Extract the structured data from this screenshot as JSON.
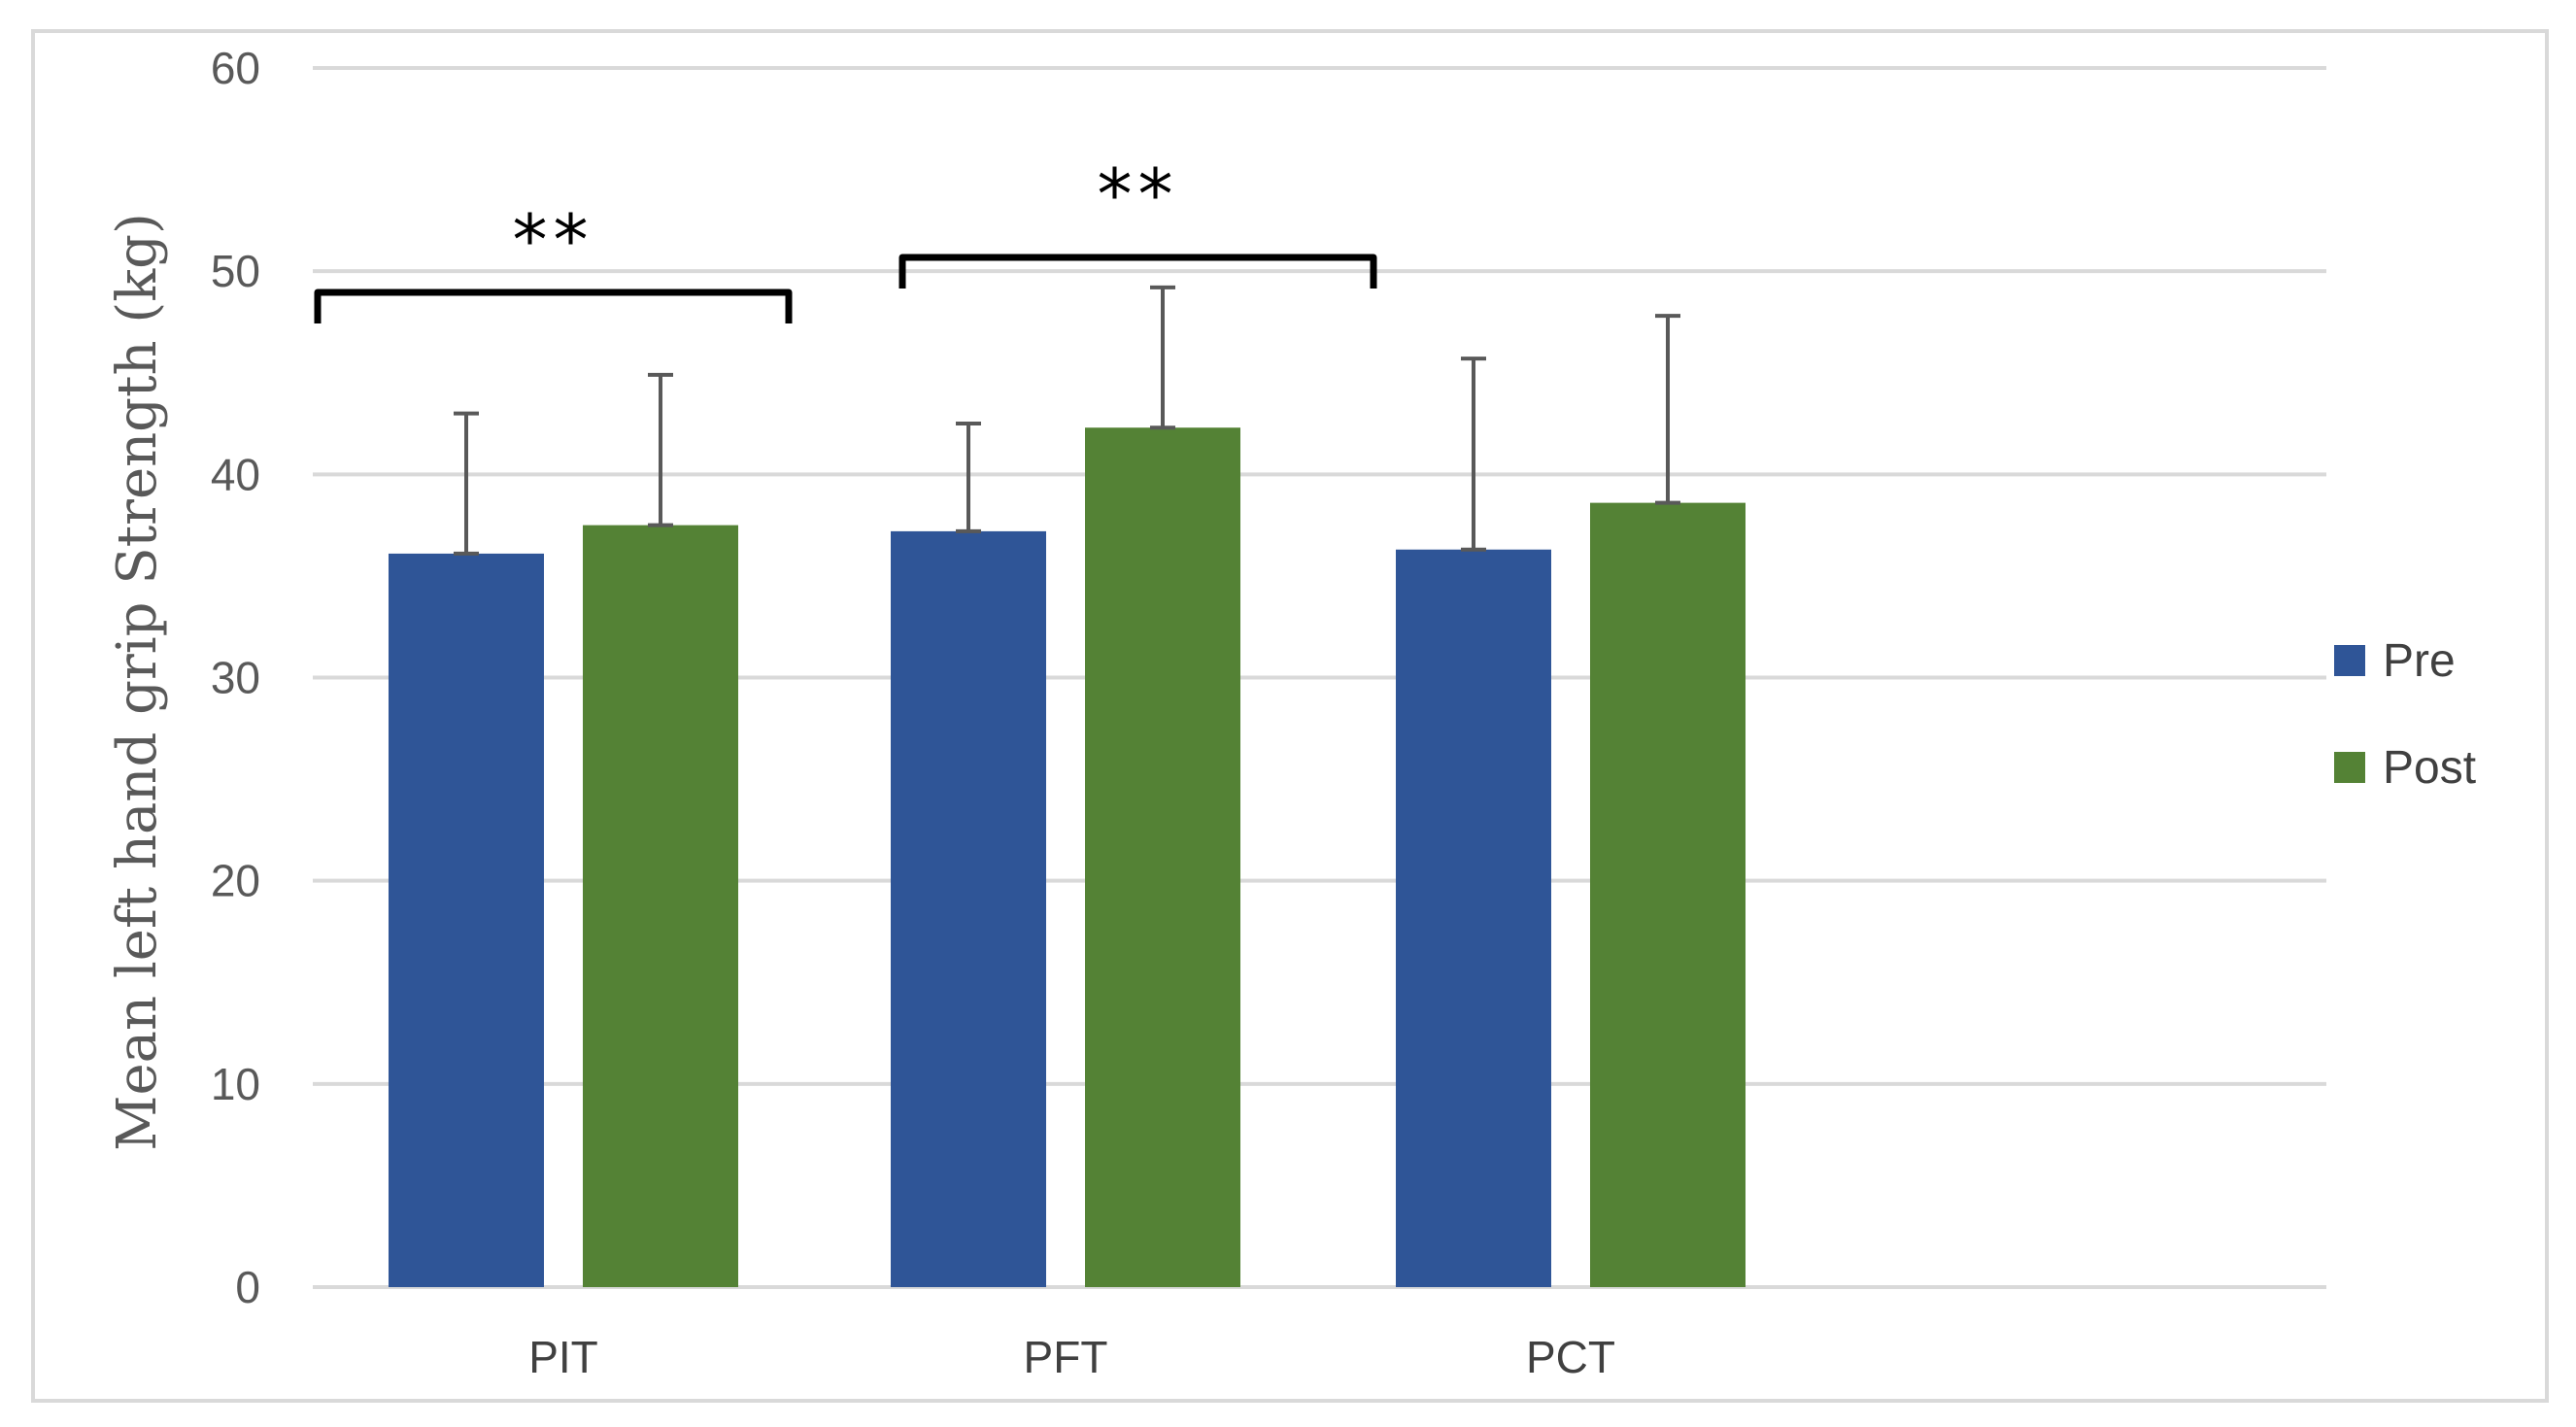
{
  "chart_data": {
    "type": "bar",
    "title": "",
    "xlabel": "",
    "ylabel": "Mean left hand grip Strength (kg)",
    "ylim": [
      0,
      60
    ],
    "yticks": [
      0,
      10,
      20,
      30,
      40,
      50,
      60
    ],
    "grid": true,
    "legend_position": "right",
    "categories": [
      "PIT",
      "PFT",
      "PCT"
    ],
    "series": [
      {
        "name": "Pre",
        "color": "#2f5597",
        "values": [
          36.1,
          37.2,
          36.3
        ],
        "error_upper": [
          6.9,
          5.3,
          9.4
        ]
      },
      {
        "name": "Post",
        "color": "#548235",
        "color_label": "green",
        "values": [
          37.5,
          42.3,
          38.6
        ],
        "error_upper": [
          7.4,
          6.9,
          9.2
        ]
      }
    ],
    "error_bar_color": "#595959",
    "annotations": [
      {
        "type": "significance-bracket",
        "category": "PIT",
        "text": "**"
      },
      {
        "type": "significance-bracket",
        "category": "PFT",
        "text": "**"
      }
    ]
  }
}
